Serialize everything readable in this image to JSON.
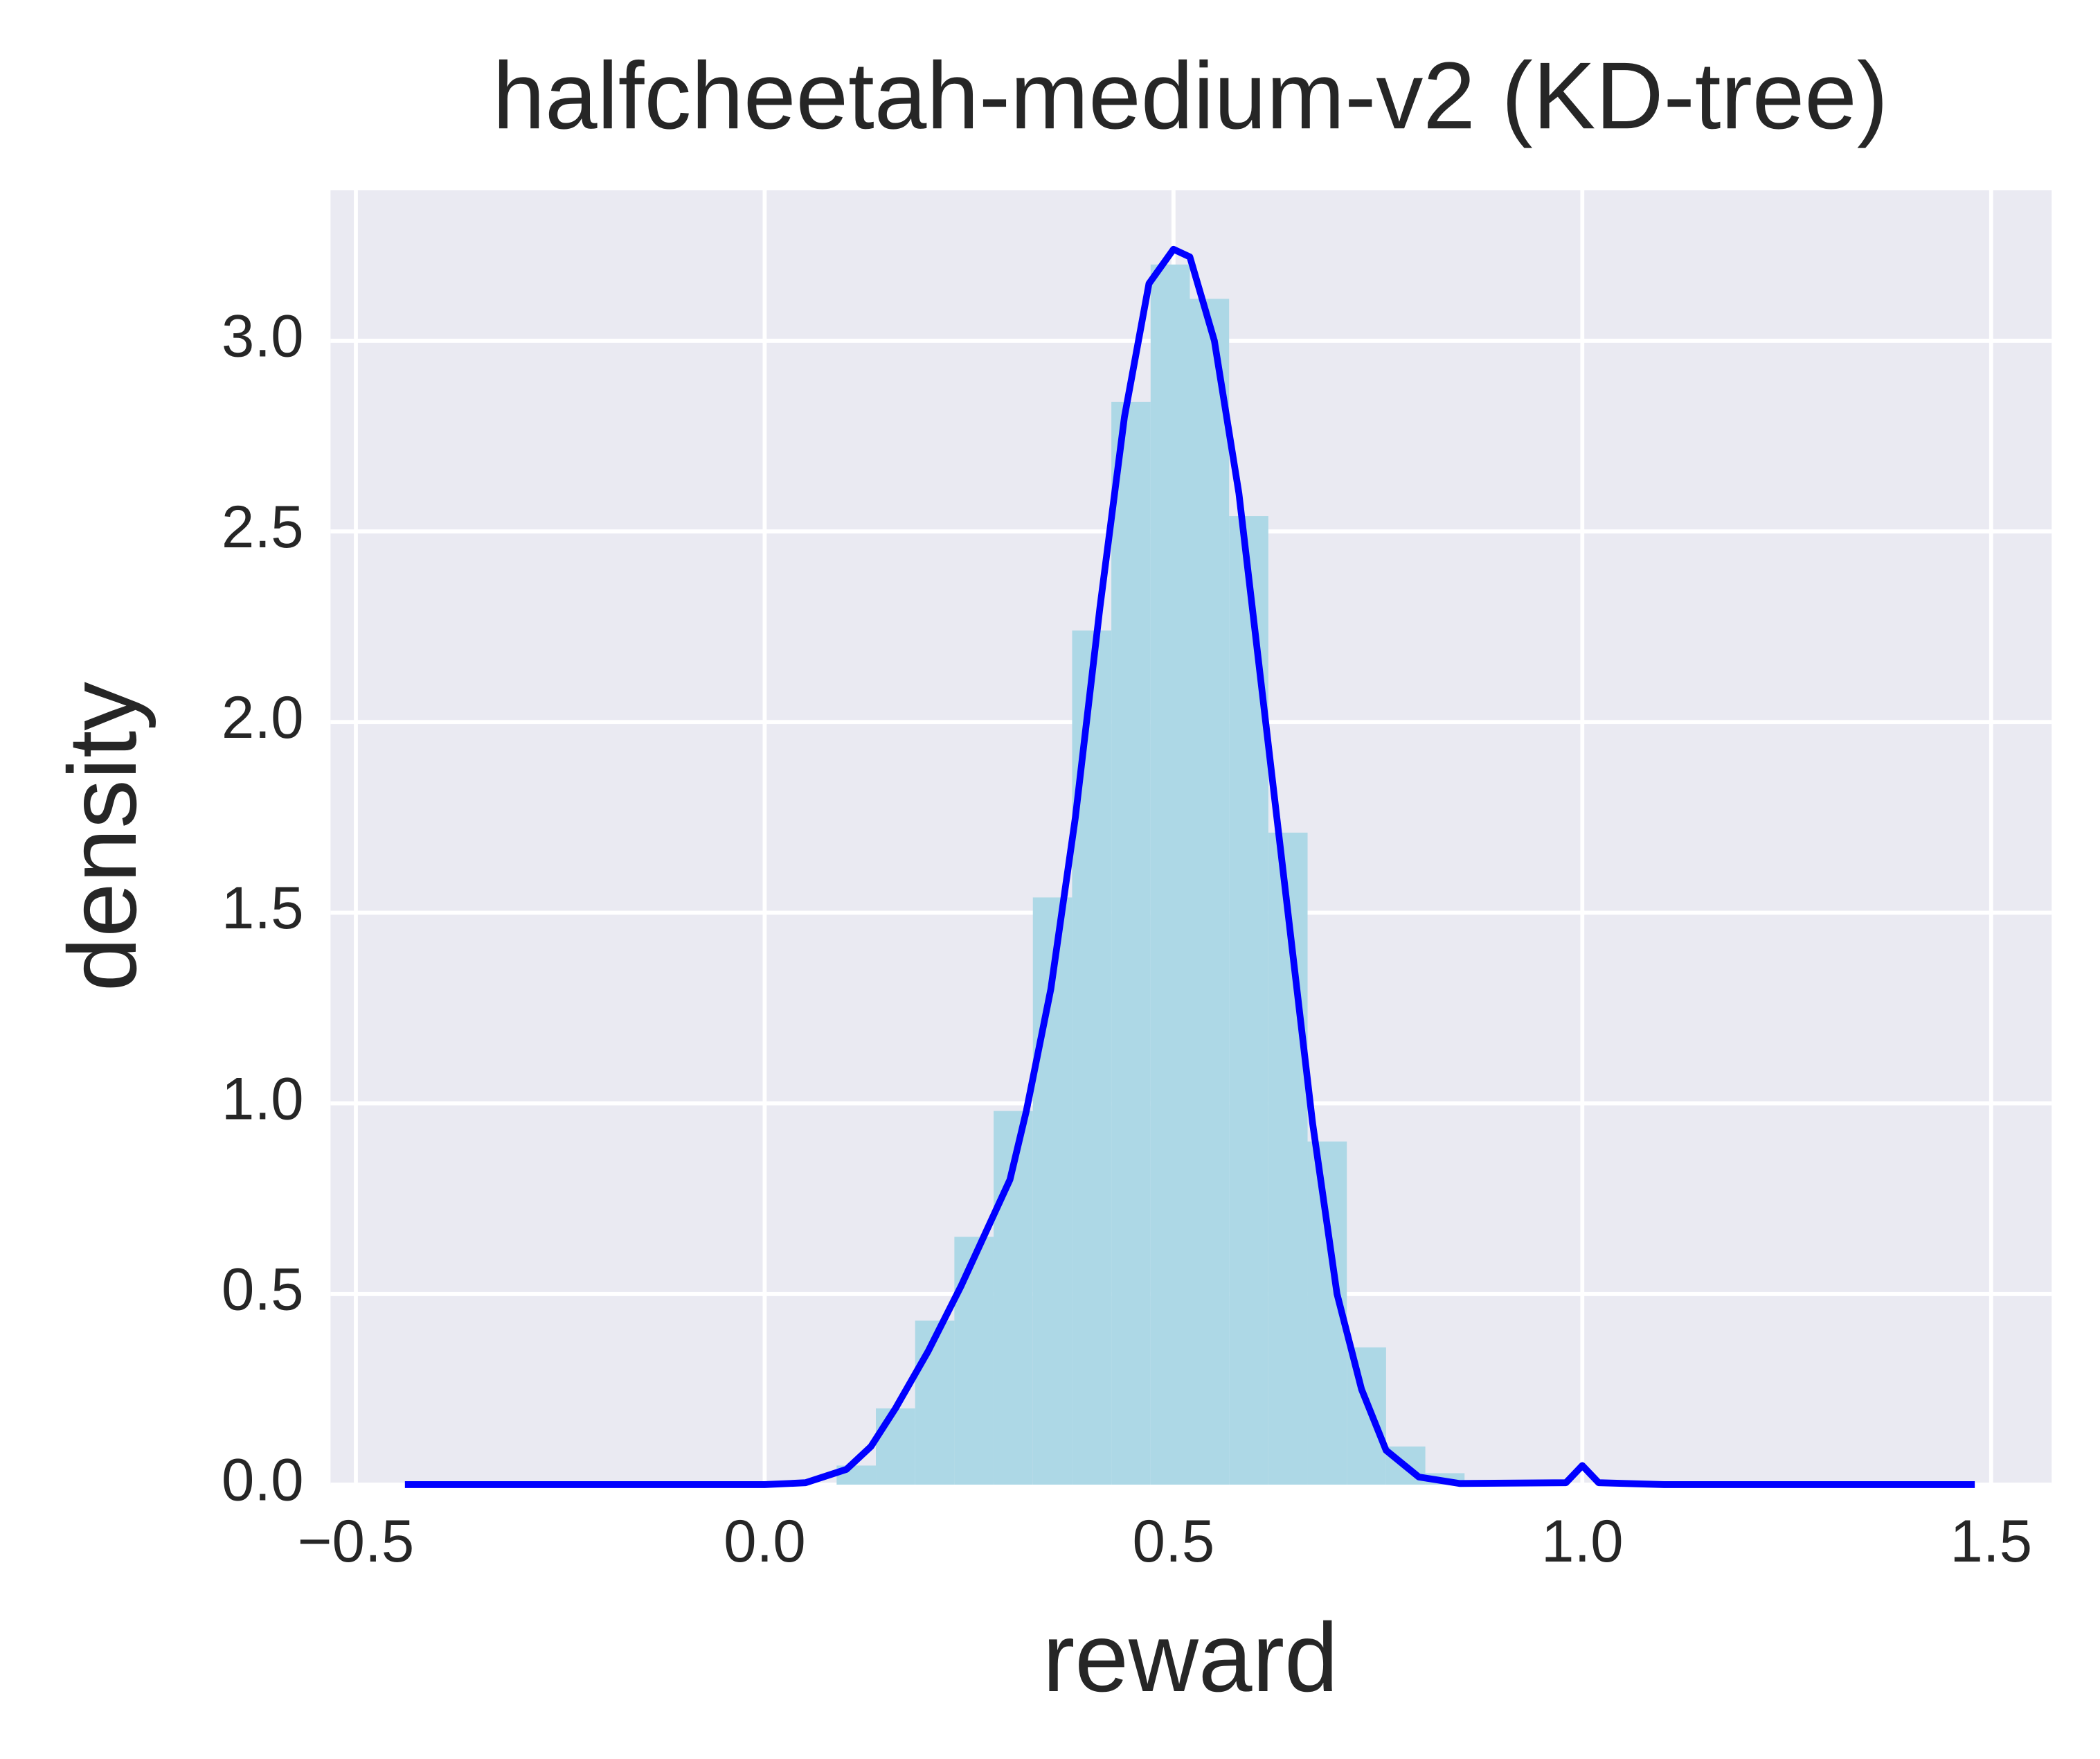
{
  "chart_data": {
    "type": "histogram",
    "title": "halfcheetah-medium-v2 (KD-tree)",
    "xlabel": "reward",
    "ylabel": "density",
    "bins": [
      -0.44,
      -0.392,
      -0.344,
      -0.296,
      -0.248,
      -0.2,
      -0.152,
      -0.104,
      -0.056,
      -0.008,
      0.04,
      0.088,
      0.136,
      0.184,
      0.232,
      0.28,
      0.328,
      0.376,
      0.424,
      0.472,
      0.52,
      0.568,
      0.616,
      0.664,
      0.712,
      0.76,
      0.808,
      0.856,
      0.904,
      0.952,
      1.0,
      1.048,
      1.096,
      1.144,
      1.192,
      1.24,
      1.288,
      1.336,
      1.384,
      1.432,
      1.48
    ],
    "values": [
      0,
      0,
      0,
      0,
      0,
      0,
      0,
      0,
      0,
      0,
      0,
      0.05,
      0.2,
      0.43,
      0.65,
      0.98,
      1.54,
      2.24,
      2.84,
      3.2,
      3.11,
      2.54,
      1.71,
      0.9,
      0.36,
      0.1,
      0.03,
      0,
      0,
      0,
      0,
      0,
      0,
      0,
      0,
      0,
      0,
      0,
      0,
      0
    ],
    "color": "#add8e6",
    "series": [
      {
        "type": "line",
        "color": "#0000ff",
        "x": [
          -0.44,
          0.0,
          0.05,
          0.1,
          0.13,
          0.16,
          0.2,
          0.24,
          0.27,
          0.3,
          0.32,
          0.35,
          0.38,
          0.41,
          0.44,
          0.47,
          0.5,
          0.52,
          0.55,
          0.58,
          0.61,
          0.64,
          0.67,
          0.7,
          0.73,
          0.76,
          0.8,
          0.85,
          0.98,
          1.0,
          1.02,
          1.1,
          1.48
        ],
        "values": [
          0,
          0,
          0.005,
          0.04,
          0.1,
          0.2,
          0.35,
          0.52,
          0.66,
          0.8,
          0.98,
          1.3,
          1.75,
          2.3,
          2.8,
          3.15,
          3.24,
          3.22,
          3.0,
          2.6,
          2.05,
          1.5,
          0.95,
          0.5,
          0.25,
          0.09,
          0.02,
          0.003,
          0.005,
          0.05,
          0.005,
          0,
          0
        ]
      }
    ],
    "xlim": [
      -0.531,
      1.574
    ],
    "ylim": [
      0,
      3.395
    ],
    "xticks": [
      {
        "value": -0.5,
        "label": "−0.5"
      },
      {
        "value": 0,
        "label": "0.0"
      },
      0.5,
      {
        "value": 1,
        "label": "1.0"
      },
      1.5
    ],
    "yticks": [
      {
        "value": 0,
        "label": "0.0"
      },
      0.5,
      {
        "value": 1,
        "label": "1.0"
      },
      1.5,
      {
        "value": 2,
        "label": "2.0"
      },
      2.5,
      {
        "value": 3,
        "label": "3.0"
      }
    ],
    "grid": true
  }
}
